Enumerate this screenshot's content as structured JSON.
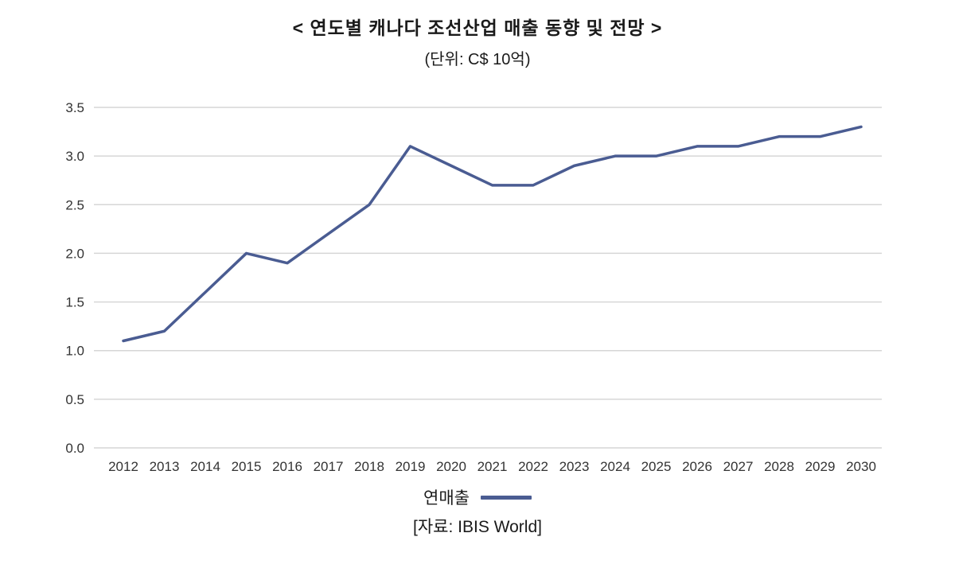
{
  "title": "< 연도별 캐나다 조선산업 매출 동향 및 전망 >",
  "subtitle": "(단위: C$ 10억)",
  "source": "[자료: IBIS World]",
  "legend": {
    "label": "연매출"
  },
  "colors": {
    "line": "#4a5c92",
    "grid": "#d6d6d6",
    "text": "#333333"
  },
  "chart_data": {
    "type": "line",
    "title": "< 연도별 캐나다 조선산업 매출 동향 및 전망 >",
    "subtitle_unit": "(단위: C$ 10억)",
    "x": [
      2012,
      2013,
      2014,
      2015,
      2016,
      2017,
      2018,
      2019,
      2020,
      2021,
      2022,
      2023,
      2024,
      2025,
      2026,
      2027,
      2028,
      2029,
      2030
    ],
    "series": [
      {
        "name": "연매출",
        "values": [
          1.1,
          1.2,
          1.6,
          2.0,
          1.9,
          2.2,
          2.5,
          3.1,
          2.9,
          2.7,
          2.7,
          2.9,
          3.0,
          3.0,
          3.1,
          3.1,
          3.2,
          3.2,
          3.3
        ]
      }
    ],
    "xlabel": "",
    "ylabel": "",
    "ylim": [
      0.0,
      3.5
    ],
    "yticks": [
      0.0,
      0.5,
      1.0,
      1.5,
      2.0,
      2.5,
      3.0,
      3.5
    ],
    "grid": true,
    "legend_position": "bottom",
    "source": "[자료: IBIS World]"
  }
}
